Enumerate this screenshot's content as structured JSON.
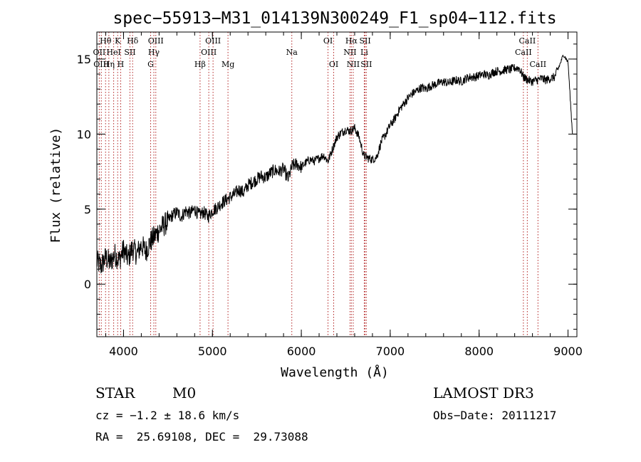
{
  "chart_data": {
    "type": "line",
    "title": "spec−55913−M31_014139N300249_F1_sp04−112.fits",
    "xlabel": "Wavelength (Å)",
    "ylabel": "Flux (relative)",
    "xlim": [
      3700,
      9100
    ],
    "ylim": [
      -3.5,
      16.8
    ],
    "x_ticks": [
      4000,
      5000,
      6000,
      7000,
      8000,
      9000
    ],
    "y_ticks": [
      0,
      5,
      10,
      15
    ],
    "series": [
      {
        "name": "flux",
        "x": [
          3700,
          3750,
          3800,
          3850,
          3900,
          3950,
          4000,
          4050,
          4100,
          4150,
          4200,
          4250,
          4300,
          4350,
          4400,
          4450,
          4500,
          4550,
          4600,
          4650,
          4700,
          4750,
          4800,
          4850,
          4900,
          4950,
          5000,
          5050,
          5100,
          5150,
          5200,
          5250,
          5300,
          5350,
          5400,
          5450,
          5500,
          5550,
          5600,
          5650,
          5700,
          5750,
          5800,
          5850,
          5900,
          5950,
          6000,
          6050,
          6100,
          6150,
          6200,
          6250,
          6300,
          6350,
          6400,
          6450,
          6500,
          6550,
          6600,
          6650,
          6700,
          6750,
          6800,
          6850,
          6900,
          6950,
          7000,
          7050,
          7100,
          7150,
          7200,
          7250,
          7300,
          7350,
          7400,
          7450,
          7500,
          7550,
          7600,
          7650,
          7700,
          7750,
          7800,
          7850,
          7900,
          7950,
          8000,
          8050,
          8100,
          8150,
          8200,
          8250,
          8300,
          8350,
          8400,
          8450,
          8500,
          8550,
          8600,
          8650,
          8700,
          8750,
          8800,
          8850,
          8900,
          8950,
          9000,
          9050
        ],
        "y": [
          1.5,
          1.2,
          1.8,
          1.4,
          2.0,
          1.6,
          2.3,
          1.7,
          2.4,
          2.0,
          2.6,
          2.2,
          2.8,
          3.2,
          3.6,
          3.9,
          4.2,
          4.6,
          4.8,
          4.5,
          4.9,
          4.7,
          5.0,
          4.6,
          4.8,
          4.5,
          4.9,
          5.1,
          5.4,
          5.6,
          5.8,
          6.0,
          6.3,
          6.1,
          6.6,
          6.8,
          7.0,
          7.2,
          7.1,
          7.4,
          7.6,
          7.5,
          7.7,
          7.0,
          7.9,
          8.0,
          7.8,
          8.1,
          8.3,
          8.2,
          8.4,
          8.6,
          8.2,
          9.0,
          9.8,
          10.1,
          10.3,
          10.2,
          10.4,
          9.8,
          8.6,
          8.4,
          8.3,
          8.5,
          9.5,
          10.0,
          10.6,
          11.0,
          11.6,
          12.0,
          12.4,
          12.7,
          12.9,
          13.1,
          13.0,
          13.2,
          13.3,
          13.4,
          13.5,
          13.4,
          13.5,
          13.6,
          13.5,
          13.7,
          13.8,
          13.8,
          13.9,
          14.0,
          13.9,
          14.1,
          14.2,
          14.2,
          14.3,
          14.3,
          14.4,
          14.4,
          13.8,
          13.6,
          13.5,
          13.6,
          13.7,
          13.6,
          13.7,
          13.8,
          14.5,
          15.3,
          14.8,
          10.0
        ]
      }
    ],
    "lines": [
      {
        "label": "Hθ",
        "wave": 3798,
        "row": 1
      },
      {
        "label": "OII",
        "wave": 3727,
        "row": 2
      },
      {
        "label": "OIII",
        "wave": 3750,
        "row": 3
      },
      {
        "label": "HeI",
        "wave": 3889,
        "row": 2
      },
      {
        "label": "Hη",
        "wave": 3835,
        "row": 3
      },
      {
        "label": "K",
        "wave": 3934,
        "row": 1
      },
      {
        "label": "SII",
        "wave": 4072,
        "row": 2
      },
      {
        "label": "H",
        "wave": 3968,
        "row": 3
      },
      {
        "label": "Hδ",
        "wave": 4102,
        "row": 1
      },
      {
        "label": "OIII",
        "wave": 4363,
        "row": 1
      },
      {
        "label": "Hγ",
        "wave": 4341,
        "row": 2
      },
      {
        "label": "G",
        "wave": 4305,
        "row": 3
      },
      {
        "label": "Hβ",
        "wave": 4861,
        "row": 3
      },
      {
        "label": "OIII",
        "wave": 5007,
        "row": 1
      },
      {
        "label": "OIII",
        "wave": 4959,
        "row": 2
      },
      {
        "label": "Mg",
        "wave": 5175,
        "row": 3
      },
      {
        "label": "Na",
        "wave": 5893,
        "row": 2
      },
      {
        "label": "OI",
        "wave": 6300,
        "row": 1
      },
      {
        "label": "OI",
        "wave": 6364,
        "row": 3
      },
      {
        "label": "Hα",
        "wave": 6563,
        "row": 1
      },
      {
        "label": "NII",
        "wave": 6548,
        "row": 2
      },
      {
        "label": "NII",
        "wave": 6584,
        "row": 3
      },
      {
        "label": "SII",
        "wave": 6717,
        "row": 1
      },
      {
        "label": "Li",
        "wave": 6708,
        "row": 2
      },
      {
        "label": "SII",
        "wave": 6731,
        "row": 3
      },
      {
        "label": "CaII",
        "wave": 8542,
        "row": 1
      },
      {
        "label": "CaII",
        "wave": 8498,
        "row": 2
      },
      {
        "label": "CaII",
        "wave": 8662,
        "row": 3
      }
    ]
  },
  "info": {
    "class": "STAR",
    "subclass": "M0",
    "survey": "LAMOST DR3",
    "cz": "cz = −1.2 ± 18.6 km/s",
    "obs_date": "Obs−Date: 20111217",
    "radec": "RA =  25.69108, DEC =  29.73088"
  }
}
